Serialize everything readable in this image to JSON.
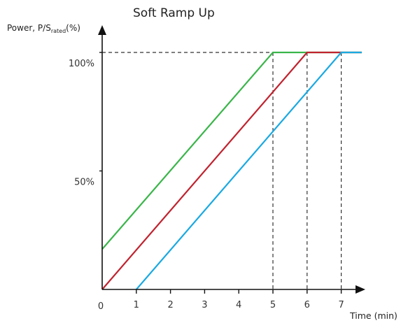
{
  "chart_data": {
    "type": "line",
    "title": "Soft Ramp Up",
    "ylabel": {
      "prefix": "Power, P/S",
      "subscript": "rated",
      "suffix": "(%)"
    },
    "xlabel": "Time (min)",
    "x_ticks": [
      0,
      1,
      2,
      3,
      4,
      5,
      6,
      7
    ],
    "x_tick_labels": [
      "0",
      "1",
      "2",
      "3",
      "4",
      "5",
      "6",
      "7"
    ],
    "y_ticks": [
      50,
      100
    ],
    "y_tick_labels": [
      "50%",
      "100%"
    ],
    "xlim": [
      0,
      7.6
    ],
    "ylim": [
      0,
      103
    ],
    "series": [
      {
        "color": "#3ab54a",
        "points": [
          [
            0,
            17
          ],
          [
            5,
            100
          ],
          [
            7.6,
            100
          ]
        ]
      },
      {
        "color": "#c0232f",
        "points": [
          [
            0,
            0
          ],
          [
            6,
            100
          ],
          [
            7.6,
            100
          ]
        ]
      },
      {
        "color": "#1aa9e1",
        "points": [
          [
            1,
            0
          ],
          [
            7,
            100
          ],
          [
            7.6,
            100
          ]
        ]
      }
    ],
    "guides": {
      "y": 100,
      "x": [
        5,
        6,
        7
      ]
    },
    "grid": false
  }
}
